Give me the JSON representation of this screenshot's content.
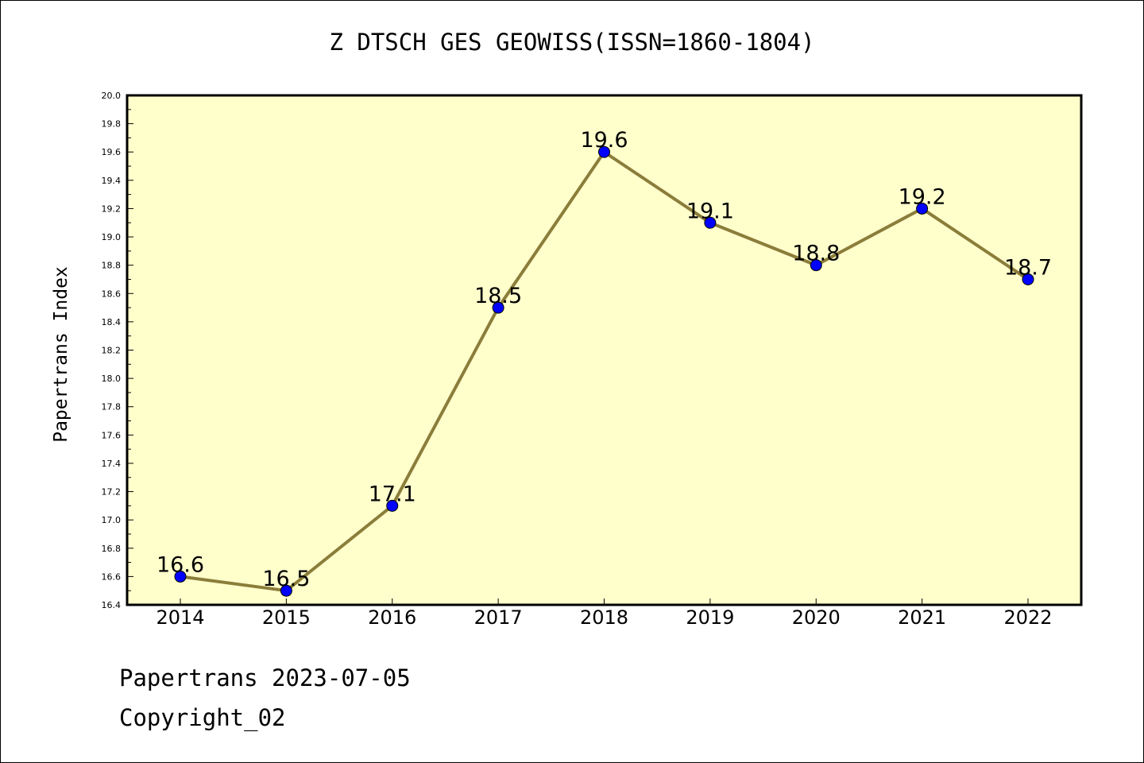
{
  "chart_data": {
    "type": "line",
    "title": "Z DTSCH GES GEOWISS(ISSN=1860-1804)",
    "ylabel": "Papertrans Index",
    "xlabel": "",
    "categories": [
      "2014",
      "2015",
      "2016",
      "2017",
      "2018",
      "2019",
      "2020",
      "2021",
      "2022"
    ],
    "values": [
      16.6,
      16.5,
      17.1,
      18.5,
      19.6,
      19.1,
      18.8,
      19.2,
      18.7
    ],
    "data_labels": [
      "16.6",
      "16.5",
      "17.1",
      "18.5",
      "19.6",
      "19.1",
      "18.8",
      "19.2",
      "18.7"
    ],
    "ylim": [
      16.4,
      20.0
    ],
    "yticks": [
      "16.4",
      "16.6",
      "16.8",
      "17.0",
      "17.2",
      "17.4",
      "17.6",
      "17.8",
      "18.0",
      "18.2",
      "18.4",
      "18.6",
      "18.8",
      "19.0",
      "19.2",
      "19.4",
      "19.6",
      "19.8",
      "20.0"
    ],
    "grid": false,
    "colors": {
      "plot_background": "#ffffcc",
      "line": "#8b7d3a",
      "marker": "#0000ff"
    }
  },
  "footer": {
    "line1": "Papertrans 2023-07-05",
    "line2": "Copyright_02"
  }
}
